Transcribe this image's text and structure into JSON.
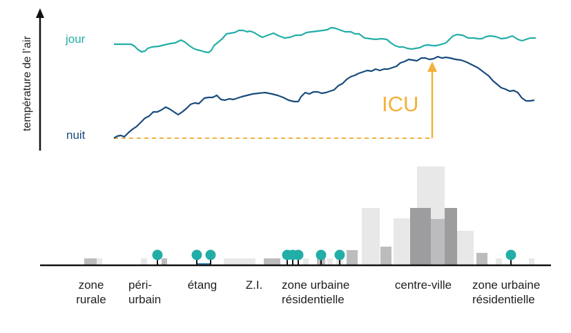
{
  "y_axis_label": "température de l’air",
  "series": {
    "day": {
      "label": "jour",
      "color": "#22aea6"
    },
    "night": {
      "label": "nuit",
      "color": "#184a7c"
    }
  },
  "icu": {
    "label": "ICU",
    "color": "#f2b13a"
  },
  "zones": [
    {
      "line1": "zone",
      "line2": "rurale"
    },
    {
      "line1": "péri-",
      "line2": "urbain"
    },
    {
      "line1": "étang",
      "line2": ""
    },
    {
      "line1": "Z.I.",
      "line2": ""
    },
    {
      "line1": "zone urbaine",
      "line2": "résidentielle"
    },
    {
      "line1": "centre-ville",
      "line2": ""
    },
    {
      "line1": "zone urbaine",
      "line2": "résidentielle"
    }
  ],
  "colors": {
    "building_light": "#e8e8e9",
    "building_mid": "#bcbcbe",
    "building_dark": "#9d9da0",
    "tree": "#22aea6",
    "axis": "#111111",
    "pond": "#2e7fb8"
  }
}
